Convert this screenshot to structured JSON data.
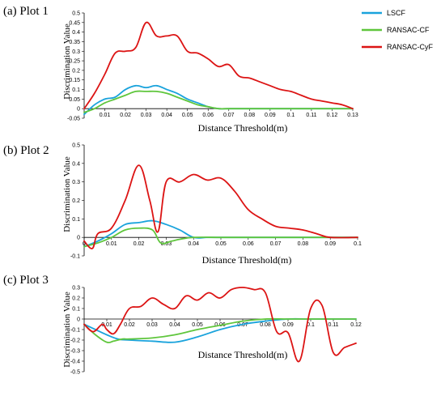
{
  "legend": [
    {
      "name": "LSCF",
      "color": "#1aa3dc"
    },
    {
      "name": "RANSAC-CF",
      "color": "#5fc63c"
    },
    {
      "name": "RANSAC-CyF",
      "color": "#dc1414"
    }
  ],
  "chart_data": [
    {
      "type": "line",
      "title": "(a) Plot 1",
      "xlabel": "Distance Threshold(m)",
      "ylabel": "Discrimination Value",
      "xlim": [
        0,
        0.13
      ],
      "ylim": [
        -0.05,
        0.5
      ],
      "xticks": [
        "0.01",
        "0.02",
        "0.03",
        "0.04",
        "0.05",
        "0.06",
        "0.07",
        "0.08",
        "0.09",
        "0.1",
        "0.11",
        "0.12",
        "0.13"
      ],
      "yticks": [
        "-0.05",
        "0",
        "0.05",
        "0.1",
        "0.15",
        "0.2",
        "0.25",
        "0.3",
        "0.35",
        "0.4",
        "0.45",
        "0.5"
      ],
      "grid": false,
      "legend": "top-right",
      "series": [
        {
          "name": "LSCF",
          "x": [
            0,
            0.005,
            0.01,
            0.015,
            0.02,
            0.025,
            0.03,
            0.035,
            0.04,
            0.045,
            0.05,
            0.055,
            0.06,
            0.065,
            0.07,
            0.075,
            0.08,
            0.1,
            0.13
          ],
          "y": [
            -0.03,
            0.02,
            0.05,
            0.06,
            0.1,
            0.12,
            0.11,
            0.12,
            0.1,
            0.08,
            0.05,
            0.03,
            0.01,
            0.0,
            0.0,
            0.0,
            0.0,
            0.0,
            0.0
          ]
        },
        {
          "name": "RANSAC-CF",
          "x": [
            0,
            0.005,
            0.01,
            0.015,
            0.02,
            0.025,
            0.03,
            0.035,
            0.04,
            0.045,
            0.05,
            0.055,
            0.06,
            0.065,
            0.07,
            0.08,
            0.1,
            0.13
          ],
          "y": [
            -0.02,
            0.0,
            0.03,
            0.05,
            0.07,
            0.09,
            0.09,
            0.09,
            0.08,
            0.06,
            0.04,
            0.02,
            0.01,
            0.0,
            0.0,
            0.0,
            0.0,
            0.0
          ]
        },
        {
          "name": "RANSAC-CyF",
          "x": [
            0,
            0.005,
            0.01,
            0.015,
            0.02,
            0.025,
            0.03,
            0.035,
            0.04,
            0.045,
            0.05,
            0.055,
            0.06,
            0.065,
            0.07,
            0.075,
            0.08,
            0.085,
            0.09,
            0.095,
            0.1,
            0.105,
            0.11,
            0.115,
            0.12,
            0.125,
            0.13
          ],
          "y": [
            0.0,
            0.08,
            0.18,
            0.29,
            0.3,
            0.32,
            0.45,
            0.38,
            0.38,
            0.38,
            0.3,
            0.29,
            0.26,
            0.22,
            0.23,
            0.17,
            0.16,
            0.14,
            0.12,
            0.1,
            0.09,
            0.07,
            0.05,
            0.04,
            0.03,
            0.02,
            0.0
          ]
        }
      ]
    },
    {
      "type": "line",
      "title": "(b) Plot 2",
      "xlabel": "Distance Threshold(m)",
      "ylabel": "Discrimination Value",
      "xlim": [
        0,
        0.1
      ],
      "ylim": [
        -0.1,
        0.5
      ],
      "xticks": [
        "0",
        "0.01",
        "0.02",
        "0.03",
        "0.04",
        "0.05",
        "0.06",
        "0.07",
        "0.08",
        "0.09",
        "0.1"
      ],
      "yticks": [
        "-0.1",
        "0",
        "0.1",
        "0.2",
        "0.3",
        "0.4",
        "0.5"
      ],
      "grid": false,
      "series": [
        {
          "name": "LSCF",
          "x": [
            0,
            0.005,
            0.01,
            0.015,
            0.02,
            0.025,
            0.03,
            0.035,
            0.04,
            0.045,
            0.05,
            0.06,
            0.1
          ],
          "y": [
            -0.05,
            -0.02,
            0.02,
            0.07,
            0.08,
            0.09,
            0.07,
            0.04,
            0.0,
            0.0,
            0.0,
            0.0,
            0.0
          ]
        },
        {
          "name": "RANSAC-CF",
          "x": [
            0,
            0.005,
            0.01,
            0.015,
            0.02,
            0.025,
            0.028,
            0.032,
            0.035,
            0.04,
            0.05,
            0.06,
            0.07,
            0.08,
            0.09,
            0.1
          ],
          "y": [
            -0.05,
            -0.03,
            0.0,
            0.04,
            0.05,
            0.04,
            -0.03,
            -0.02,
            -0.01,
            0.0,
            0.0,
            0.0,
            0.0,
            0.0,
            0.0,
            0.0
          ]
        },
        {
          "name": "RANSAC-CyF",
          "x": [
            0,
            0.003,
            0.005,
            0.01,
            0.015,
            0.02,
            0.024,
            0.027,
            0.03,
            0.035,
            0.04,
            0.045,
            0.05,
            0.055,
            0.06,
            0.065,
            0.07,
            0.075,
            0.08,
            0.085,
            0.09,
            0.1
          ],
          "y": [
            -0.02,
            -0.06,
            0.02,
            0.05,
            0.2,
            0.39,
            0.2,
            0.03,
            0.3,
            0.3,
            0.34,
            0.31,
            0.32,
            0.25,
            0.15,
            0.1,
            0.06,
            0.05,
            0.04,
            0.02,
            0.0,
            0.0
          ]
        }
      ]
    },
    {
      "type": "line",
      "title": "(c) Plot 3",
      "xlabel": "Distance Threshold(m)",
      "ylabel": "Discrimination Value",
      "xlim": [
        0,
        0.12
      ],
      "ylim": [
        -0.5,
        0.3
      ],
      "xticks": [
        "0.01",
        "0.02",
        "0.03",
        "0.04",
        "0.05",
        "0.06",
        "0.07",
        "0.08",
        "0.09",
        "0.1",
        "0.11",
        "0.12"
      ],
      "yticks": [
        "-0.5",
        "-0.4",
        "-0.3",
        "-0.2",
        "-0.1",
        "0",
        "0.1",
        "0.2",
        "0.3"
      ],
      "grid": false,
      "series": [
        {
          "name": "LSCF",
          "x": [
            0,
            0.005,
            0.01,
            0.015,
            0.02,
            0.03,
            0.04,
            0.05,
            0.06,
            0.07,
            0.08,
            0.09,
            0.1,
            0.12
          ],
          "y": [
            -0.05,
            -0.1,
            -0.15,
            -0.19,
            -0.2,
            -0.21,
            -0.22,
            -0.17,
            -0.1,
            -0.05,
            -0.02,
            0.0,
            0.0,
            0.0
          ]
        },
        {
          "name": "RANSAC-CF",
          "x": [
            0,
            0.005,
            0.01,
            0.013,
            0.017,
            0.02,
            0.03,
            0.04,
            0.05,
            0.06,
            0.07,
            0.08,
            0.09,
            0.1,
            0.12
          ],
          "y": [
            -0.05,
            -0.15,
            -0.22,
            -0.21,
            -0.19,
            -0.19,
            -0.18,
            -0.15,
            -0.1,
            -0.06,
            -0.02,
            0.0,
            0.0,
            0.0,
            0.0
          ]
        },
        {
          "name": "RANSAC-CyF",
          "x": [
            0,
            0.004,
            0.008,
            0.01,
            0.013,
            0.016,
            0.02,
            0.025,
            0.03,
            0.035,
            0.04,
            0.045,
            0.05,
            0.055,
            0.06,
            0.065,
            0.07,
            0.075,
            0.08,
            0.085,
            0.09,
            0.095,
            0.1,
            0.105,
            0.11,
            0.115,
            0.12
          ],
          "y": [
            -0.05,
            -0.12,
            -0.05,
            -0.1,
            -0.14,
            -0.05,
            0.1,
            0.12,
            0.2,
            0.14,
            0.1,
            0.22,
            0.18,
            0.25,
            0.2,
            0.28,
            0.3,
            0.28,
            0.25,
            -0.12,
            -0.13,
            -0.4,
            0.1,
            0.13,
            -0.32,
            -0.27,
            -0.23
          ]
        }
      ]
    }
  ]
}
